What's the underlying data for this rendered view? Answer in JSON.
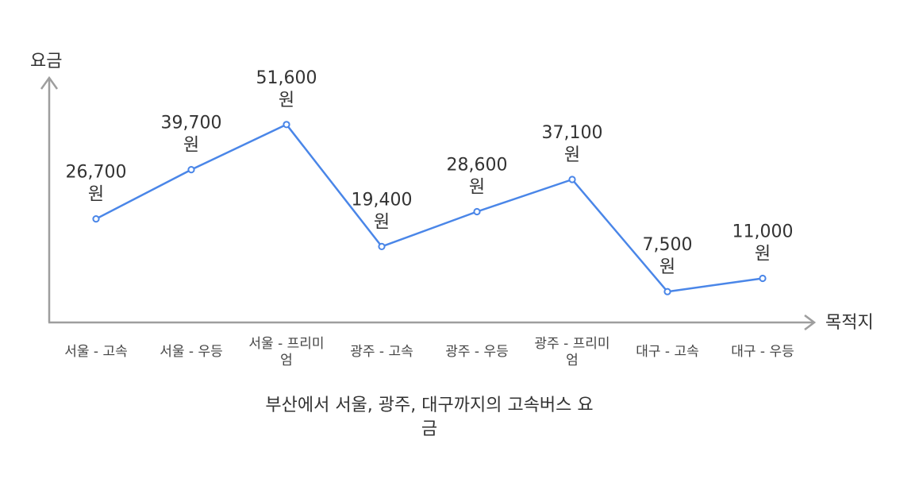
{
  "chart_data": {
    "type": "line",
    "title": "부산에서 서울, 광주, 대구까지의 고속버스 요금",
    "xlabel": "목적지",
    "ylabel": "요금",
    "categories": [
      "서울 - 고속",
      "서울 - 우등",
      "서울 - 프리미엄",
      "광주 - 고속",
      "광주 - 우등",
      "광주 - 프리미엄",
      "대구 - 고속",
      "대구 - 우등"
    ],
    "series": [
      {
        "values": [
          26700,
          39700,
          51600,
          19400,
          28600,
          37100,
          7500,
          11000
        ]
      }
    ],
    "data_labels": [
      "26,700 원",
      "39,700 원",
      "51,600 원",
      "19,400 원",
      "28,600 원",
      "37,100 원",
      "7,500 원",
      "11,000 원"
    ],
    "ylim": [
      0,
      70000
    ],
    "grid": false,
    "legend": "none",
    "colors": {
      "line": "#4a86e8",
      "axis": "#9e9e9e",
      "text": "#333333"
    }
  }
}
